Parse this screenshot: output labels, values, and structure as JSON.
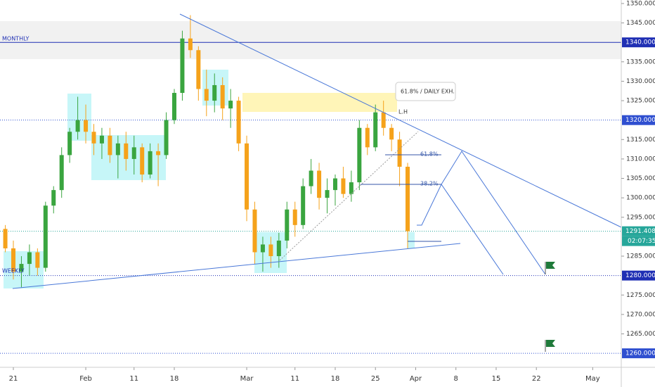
{
  "chart_data": {
    "type": "candlestick",
    "up_color": "#3aa53f",
    "down_color": "#f5a21b",
    "x": [
      -1,
      0,
      1,
      2,
      3,
      4,
      5,
      6,
      7,
      8,
      9,
      10,
      11,
      12,
      13,
      14,
      15,
      16,
      17,
      18,
      19,
      20,
      21,
      22,
      23,
      24,
      25,
      26,
      27,
      28,
      29,
      30,
      31,
      32,
      33,
      34,
      35,
      36,
      37,
      38,
      39,
      40,
      41,
      42,
      43,
      44,
      45,
      46,
      47,
      48,
      49
    ],
    "open": [
      1292,
      1287,
      1281,
      1283,
      1286,
      1282,
      1298,
      1302,
      1311,
      1317,
      1320,
      1317,
      1314,
      1316,
      1311,
      1314,
      1310,
      1313,
      1306,
      1312,
      1311,
      1320,
      1327,
      1341,
      1338,
      1328,
      1325,
      1329,
      1323,
      1325,
      1314,
      1297,
      1286,
      1288,
      1285,
      1289,
      1297,
      1293,
      1303,
      1307,
      1300,
      1302,
      1305,
      1301,
      1304,
      1318,
      1313,
      1322,
      1318,
      1315,
      1308
    ],
    "high": [
      1293,
      1289,
      1285,
      1288,
      1287,
      1299,
      1303,
      1313,
      1318,
      1326,
      1324,
      1319,
      1318,
      1318,
      1316,
      1317,
      1316,
      1314,
      1314,
      1314,
      1322,
      1328,
      1343,
      1347,
      1339,
      1333,
      1332,
      1331,
      1328,
      1326,
      1316,
      1299,
      1290,
      1290,
      1291,
      1299,
      1299,
      1305,
      1310,
      1309,
      1305,
      1306,
      1308,
      1307,
      1320,
      1319,
      1324,
      1325,
      1319,
      1317,
      1309
    ],
    "low": [
      1286,
      1279,
      1277,
      1280,
      1280,
      1281,
      1296,
      1300,
      1309,
      1315,
      1314,
      1311,
      1310,
      1309,
      1305,
      1307,
      1306,
      1304,
      1305,
      1303,
      1310,
      1319,
      1325,
      1336,
      1325,
      1321,
      1322,
      1320,
      1318,
      1312,
      1294,
      1283,
      1281,
      1282,
      1282,
      1287,
      1290,
      1292,
      1301,
      1297,
      1296,
      1298,
      1300,
      1299,
      1302,
      1311,
      1312,
      1316,
      1312,
      1303,
      1287
    ],
    "close": [
      1287,
      1281,
      1283,
      1286,
      1282,
      1298,
      1302,
      1311,
      1317,
      1320,
      1317,
      1314,
      1316,
      1311,
      1314,
      1310,
      1313,
      1306,
      1312,
      1311,
      1320,
      1327,
      1341,
      1338,
      1328,
      1325,
      1329,
      1323,
      1325,
      1314,
      1297,
      1286,
      1288,
      1285,
      1289,
      1297,
      1293,
      1303,
      1307,
      1300,
      1302,
      1305,
      1301,
      1304,
      1318,
      1313,
      1322,
      1318,
      1315,
      1308,
      1291.408
    ],
    "xlim": [
      -1.66,
      75.55
    ],
    "xticks": [
      {
        "value": 0,
        "label": "21"
      },
      {
        "value": 9,
        "label": "Feb"
      },
      {
        "value": 15,
        "label": "11"
      },
      {
        "value": 20,
        "label": "18"
      },
      {
        "value": 29,
        "label": "Mar"
      },
      {
        "value": 35,
        "label": "11"
      },
      {
        "value": 40,
        "label": "18"
      },
      {
        "value": 45,
        "label": "25"
      },
      {
        "value": 50,
        "label": "Apr"
      },
      {
        "value": 55,
        "label": "8"
      },
      {
        "value": 60,
        "label": "15"
      },
      {
        "value": 65,
        "label": "22"
      },
      {
        "value": 72,
        "label": "May"
      }
    ],
    "ylim": [
      1256.4,
      1350.9
    ],
    "yticks": [
      {
        "value": 1350,
        "label": "1350.000"
      },
      {
        "value": 1345,
        "label": "1345.000"
      },
      {
        "value": 1335,
        "label": "1335.000"
      },
      {
        "value": 1330,
        "label": "1330.000"
      },
      {
        "value": 1325,
        "label": "1325.000"
      },
      {
        "value": 1315,
        "label": "1315.000"
      },
      {
        "value": 1310,
        "label": "1310.000"
      },
      {
        "value": 1305,
        "label": "1305.000"
      },
      {
        "value": 1300,
        "label": "1300.000"
      },
      {
        "value": 1295,
        "label": "1295.000"
      },
      {
        "value": 1285,
        "label": "1285.000"
      },
      {
        "value": 1275,
        "label": "1275.000"
      },
      {
        "value": 1270,
        "label": "1270.000"
      },
      {
        "value": 1265,
        "label": "1265.000"
      }
    ],
    "horizontal_lines": [
      {
        "value": 1340,
        "label": "1340.000",
        "color": "#1f2fb4",
        "style": "solid"
      },
      {
        "value": 1320,
        "label": "1320.000",
        "color": "#2f4fd0",
        "style": "dotted"
      },
      {
        "value": 1291.408,
        "label": "1291.408",
        "color": "#26a69a",
        "style": "dotted"
      },
      {
        "value": 1280,
        "label": "1280.000",
        "color": "#1f2fb4",
        "style": "dotted"
      },
      {
        "value": 1260,
        "label": "1260.000",
        "color": "#2f4fd0",
        "style": "dotted"
      }
    ],
    "countdown": "02:07:35",
    "annotations": [
      "MONTHLY",
      "WEEKLY",
      "61.8% / DAILY EXH.",
      "L.H",
      "61.8%",
      "38.2%"
    ]
  }
}
